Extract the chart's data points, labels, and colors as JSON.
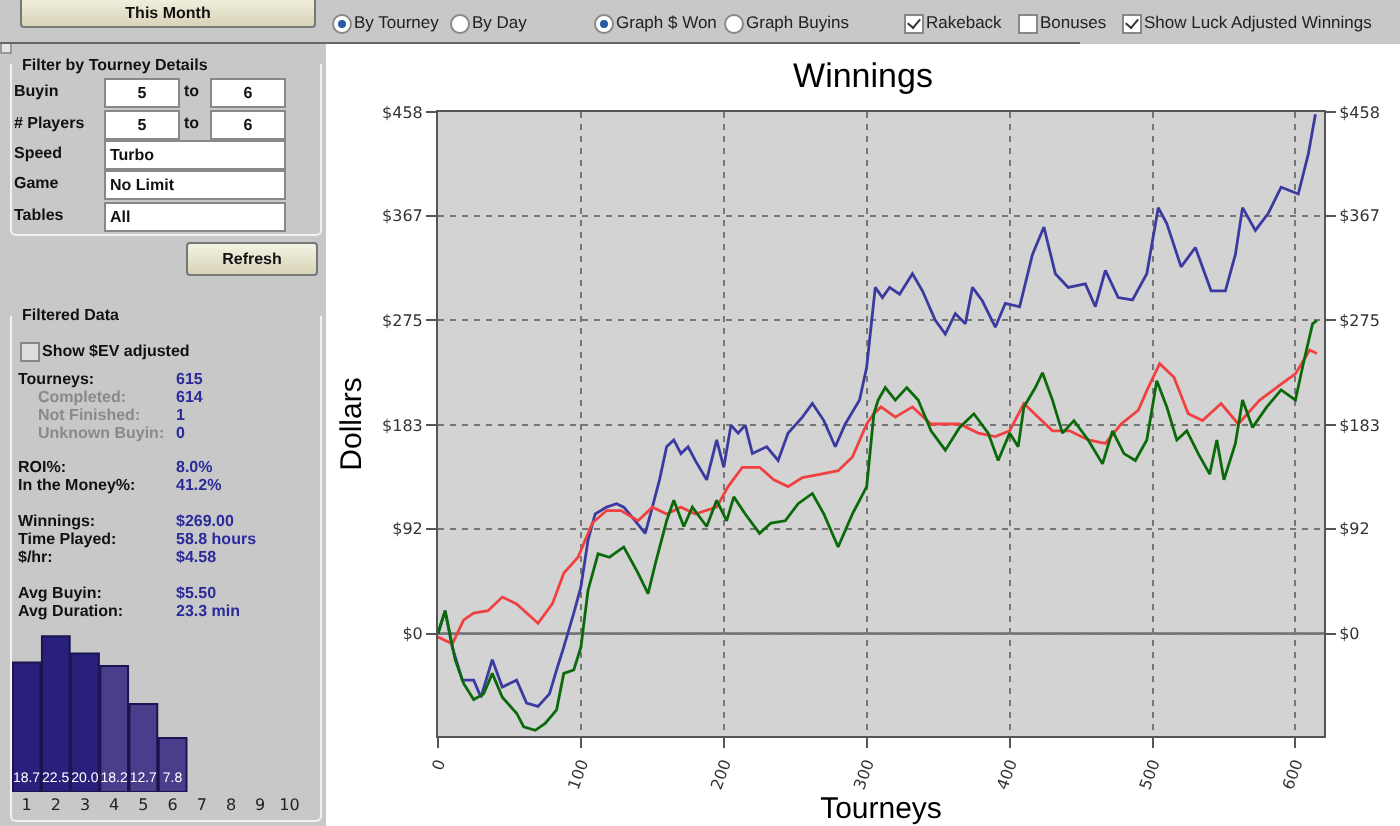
{
  "chart_data": [
    {
      "type": "other",
      "annotations": [
        "This Month",
        "Filter by Tourney Details",
        "Buyin",
        "5",
        "to",
        "6",
        "# Players",
        "5",
        "to",
        "6",
        "Speed",
        "Turbo",
        "Game",
        "No Limit",
        "Tables",
        "All",
        "Refresh",
        "Filtered Data",
        "Show $EV adjusted",
        "Tourneys:",
        "615",
        "Completed:",
        "614",
        "Not Finished:",
        "1",
        "Unknown Buyin:",
        "0",
        "ROI%:",
        "8.0%",
        "In the Money%:",
        "41.2%",
        "Winnings:",
        "$269.00",
        "Time Played:",
        "58.8 hours",
        "$/hr:",
        "$4.58",
        "Avg Buyin:",
        "$5.50",
        "Avg Duration:",
        "23.3 min"
      ]
    },
    {
      "type": "bar",
      "categories": [
        "1",
        "2",
        "3",
        "4",
        "5",
        "6",
        "7",
        "8",
        "9",
        "10"
      ],
      "values": [
        18.7,
        22.5,
        20.0,
        18.2,
        12.7,
        7.8,
        null,
        null,
        null,
        null
      ],
      "colors": [
        "#28207a",
        "#28207a",
        "#28207a",
        "#4a3d8c",
        "#4a3d8c",
        "#4a3d8c",
        "#4a3d8c",
        "#4a3d8c",
        "#4a3d8c",
        "#4a3d8c"
      ],
      "value_labels": [
        "18.7",
        "22.5",
        "20.0",
        "18.2",
        "12.7",
        "7.8",
        null,
        null,
        null,
        null
      ]
    },
    {
      "type": "other",
      "annotations": [
        "By Tourney",
        "By Day",
        "Graph $ Won",
        "Graph Buyins",
        "Rakeback",
        "Bonuses",
        "Show Luck Adjusted Winnings"
      ]
    },
    {
      "type": "line",
      "title": "Winnings",
      "xlabel": "Tourneys",
      "ylabel": "Dollars",
      "legend": false,
      "marker": "none",
      "line_style": "solid",
      "grid": true,
      "xlim": [
        0,
        620
      ],
      "xticks": [
        0,
        100,
        200,
        300,
        400,
        500,
        600
      ],
      "ylim": [
        -90,
        458
      ],
      "yticks": [
        {
          "value": 0,
          "label": "$0"
        },
        {
          "value": 92,
          "label": "$92"
        },
        {
          "value": 183,
          "label": "$183"
        },
        {
          "value": 275,
          "label": "$275"
        },
        {
          "value": 367,
          "label": "$367"
        },
        {
          "value": 458,
          "label": "$458"
        }
      ],
      "y2lim": [
        -90,
        458
      ],
      "y2ticks": [
        {
          "value": 0,
          "label": "$0"
        },
        {
          "value": 92,
          "label": "$92"
        },
        {
          "value": 183,
          "label": "$183"
        },
        {
          "value": 275,
          "label": "$275"
        },
        {
          "value": 367,
          "label": "$367"
        },
        {
          "value": 458,
          "label": "$458"
        }
      ],
      "ref_lines": [
        {
          "axis": "y",
          "value": 0,
          "color": "#6e6e6e"
        }
      ],
      "series": [
        {
          "color": "#3a3aa0",
          "x": [
            0,
            5,
            10,
            17,
            25,
            30,
            38,
            45,
            55,
            62,
            70,
            78,
            83,
            88,
            95,
            100,
            105,
            110,
            118,
            125,
            130,
            138,
            145,
            150,
            155,
            160,
            165,
            170,
            175,
            180,
            188,
            195,
            200,
            205,
            210,
            215,
            220,
            230,
            238,
            245,
            255,
            262,
            270,
            278,
            285,
            295,
            300,
            306,
            311,
            316,
            323,
            332,
            339,
            348,
            355,
            362,
            369,
            374,
            381,
            390,
            397,
            407,
            416,
            424,
            432,
            441,
            453,
            460,
            467,
            476,
            486,
            496,
            504,
            510,
            520,
            530,
            541,
            551,
            558,
            563,
            572,
            581,
            590,
            602,
            609,
            614
          ],
          "values": [
            0,
            20,
            -12,
            -41,
            -41,
            -56,
            -23,
            -47,
            -41,
            -61,
            -64,
            -53,
            -32,
            -12,
            18,
            41,
            82,
            105,
            111,
            114,
            111,
            99,
            88,
            111,
            135,
            164,
            170,
            158,
            164,
            152,
            135,
            170,
            146,
            183,
            176,
            183,
            158,
            164,
            152,
            176,
            190,
            202,
            187,
            164,
            184,
            205,
            234,
            304,
            295,
            304,
            298,
            316,
            301,
            275,
            263,
            281,
            272,
            304,
            292,
            269,
            290,
            287,
            333,
            357,
            316,
            304,
            307,
            287,
            319,
            295,
            293,
            316,
            374,
            360,
            322,
            339,
            301,
            301,
            333,
            374,
            354,
            369,
            392,
            386,
            421,
            456
          ]
        },
        {
          "color": "#f04040",
          "x": [
            0,
            10,
            18,
            25,
            35,
            45,
            55,
            70,
            80,
            88,
            98,
            108,
            118,
            128,
            140,
            150,
            160,
            170,
            180,
            195,
            203,
            213,
            225,
            235,
            245,
            255,
            268,
            280,
            290,
            300,
            305,
            310,
            320,
            332,
            345,
            355,
            365,
            378,
            390,
            400,
            410,
            420,
            430,
            442,
            455,
            467,
            478,
            490,
            497,
            505,
            515,
            525,
            535,
            548,
            560,
            575,
            590,
            600,
            610,
            615
          ],
          "values": [
            -3,
            -9,
            12,
            18,
            20,
            32,
            26,
            9,
            26,
            53,
            67,
            97,
            108,
            108,
            99,
            111,
            105,
            111,
            105,
            111,
            129,
            146,
            146,
            135,
            129,
            137,
            140,
            143,
            155,
            184,
            193,
            199,
            190,
            199,
            184,
            184,
            184,
            176,
            173,
            178,
            202,
            190,
            178,
            178,
            170,
            167,
            184,
            196,
            216,
            237,
            225,
            193,
            187,
            202,
            184,
            205,
            219,
            228,
            249,
            246
          ]
        },
        {
          "color": "#0a6a0a",
          "x": [
            0,
            5,
            12,
            18,
            25,
            32,
            38,
            45,
            55,
            60,
            68,
            75,
            83,
            88,
            95,
            100,
            105,
            112,
            120,
            130,
            140,
            147,
            152,
            160,
            165,
            172,
            178,
            188,
            195,
            202,
            207,
            215,
            225,
            233,
            243,
            252,
            262,
            270,
            280,
            290,
            300,
            305,
            308,
            313,
            320,
            328,
            336,
            345,
            355,
            365,
            375,
            385,
            392,
            400,
            406,
            410,
            418,
            423,
            430,
            437,
            445,
            455,
            465,
            472,
            480,
            488,
            496,
            503,
            510,
            517,
            524,
            532,
            540,
            545,
            550,
            558,
            563,
            570,
            580,
            590,
            600,
            605,
            612,
            615
          ],
          "values": [
            0,
            20,
            -23,
            -44,
            -58,
            -53,
            -35,
            -56,
            -70,
            -82,
            -85,
            -79,
            -67,
            -35,
            -32,
            -12,
            38,
            70,
            67,
            76,
            53,
            35,
            61,
            99,
            117,
            94,
            111,
            94,
            117,
            99,
            120,
            105,
            88,
            97,
            99,
            114,
            123,
            105,
            76,
            105,
            129,
            193,
            205,
            216,
            205,
            216,
            205,
            178,
            161,
            181,
            193,
            176,
            152,
            176,
            164,
            199,
            216,
            229,
            205,
            176,
            187,
            170,
            149,
            178,
            158,
            152,
            170,
            222,
            199,
            170,
            178,
            158,
            140,
            170,
            135,
            167,
            205,
            181,
            199,
            214,
            205,
            234,
            272,
            275
          ]
        }
      ]
    }
  ]
}
